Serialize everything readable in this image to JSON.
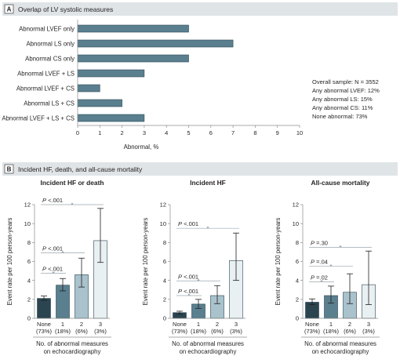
{
  "panel_a": {
    "letter": "A",
    "header": "Overlap of LV systolic measures",
    "xlabel": "Abnormal, %",
    "summary": [
      "Overall sample: N = 3552",
      "Any abnormal LVEF: 12%",
      "Any abnormal LS: 15%",
      "Any abnormal CS: 11%",
      "None abnormal: 73%"
    ]
  },
  "panel_b": {
    "letter": "B",
    "header": "Incident HF, death, and all-cause mortality",
    "ylabel": "Event rate per 100 person-years",
    "xlabel_lines": [
      "No. of abnormal measures",
      "on echocardiography"
    ]
  },
  "colors": {
    "bar_a": "#5a7f8e",
    "bar_b": [
      "#2a4450",
      "#5a7f8e",
      "#a9c2cb",
      "#e8f0f2"
    ],
    "header_band": "#dfe4e7",
    "text": "#231f20",
    "error_bar": "#231f20",
    "axis": "#8c8c8c",
    "bracket": "#9aa6ad"
  },
  "chart_data": [
    {
      "type": "bar",
      "orientation": "horizontal",
      "categories": [
        "Abnormal LVEF only",
        "Abnormal LS only",
        "Abnormal CS only",
        "Abnormal LVEF + LS",
        "Abnormal LVEF + CS",
        "Abnormal LS + CS",
        "Abnormal LVEF + LS + CS"
      ],
      "values": [
        5,
        7,
        5,
        3,
        1,
        2,
        3
      ],
      "xlim": [
        0,
        10
      ],
      "xticks": [
        0,
        1,
        2,
        3,
        4,
        5,
        6,
        7,
        8,
        9,
        10
      ],
      "xlabel": "Abnormal, %",
      "grid": false
    },
    {
      "type": "bar",
      "title": "Incident HF or death",
      "categories": [
        "None",
        "1",
        "2",
        "3"
      ],
      "category_sublabels": [
        "(73%)",
        "(18%)",
        "(6%)",
        "(3%)"
      ],
      "values": [
        2.1,
        3.5,
        4.6,
        8.2
      ],
      "error_low": [
        1.9,
        2.9,
        3.3,
        5.9
      ],
      "error_high": [
        2.35,
        4.2,
        6.35,
        11.6
      ],
      "ylim": [
        0,
        12
      ],
      "yticks": [
        0,
        2,
        4,
        6,
        8,
        10,
        12
      ],
      "ylabel": "Event rate per 100 person-years",
      "brackets": [
        {
          "from": 0,
          "to": 1,
          "y": 4.75,
          "p": "<.001"
        },
        {
          "from": 0,
          "to": 2,
          "y": 6.9,
          "p": "<.001"
        },
        {
          "from": 0,
          "to": 3,
          "y": 12.0,
          "p": "<.001"
        }
      ]
    },
    {
      "type": "bar",
      "title": "Incident HF",
      "categories": [
        "None",
        "1",
        "2",
        "3"
      ],
      "category_sublabels": [
        "(73%)",
        "(18%)",
        "(6%)",
        "(3%)"
      ],
      "values": [
        0.6,
        1.5,
        2.4,
        6.1
      ],
      "error_low": [
        0.45,
        1.05,
        1.55,
        4.0
      ],
      "error_high": [
        0.75,
        2.0,
        3.45,
        9.0
      ],
      "ylim": [
        0,
        12
      ],
      "yticks": [
        0,
        2,
        4,
        6,
        8,
        10,
        12
      ],
      "ylabel": "Event rate per 100 person-years",
      "brackets": [
        {
          "from": 0,
          "to": 1,
          "y": 2.4,
          "p": "<.001"
        },
        {
          "from": 0,
          "to": 2,
          "y": 3.95,
          "p": "<.001"
        },
        {
          "from": 0,
          "to": 3,
          "y": 9.5,
          "p": "<.001"
        }
      ]
    },
    {
      "type": "bar",
      "title": "All-cause mortality",
      "categories": [
        "None",
        "1",
        "2",
        "3"
      ],
      "category_sublabels": [
        "(73%)",
        "(18%)",
        "(6%)",
        "(3%)"
      ],
      "values": [
        1.7,
        2.4,
        2.75,
        3.55
      ],
      "error_low": [
        1.45,
        1.6,
        1.55,
        1.45
      ],
      "error_high": [
        2.05,
        3.4,
        4.7,
        7.1
      ],
      "ylim": [
        0,
        12
      ],
      "yticks": [
        0,
        2,
        4,
        6,
        8,
        10,
        12
      ],
      "ylabel": "Event rate per 100 person-years",
      "brackets": [
        {
          "from": 0,
          "to": 1,
          "y": 3.85,
          "p": "=.02"
        },
        {
          "from": 0,
          "to": 2,
          "y": 5.5,
          "p": "=.04"
        },
        {
          "from": 0,
          "to": 3,
          "y": 7.5,
          "p": "=.30"
        }
      ]
    }
  ]
}
